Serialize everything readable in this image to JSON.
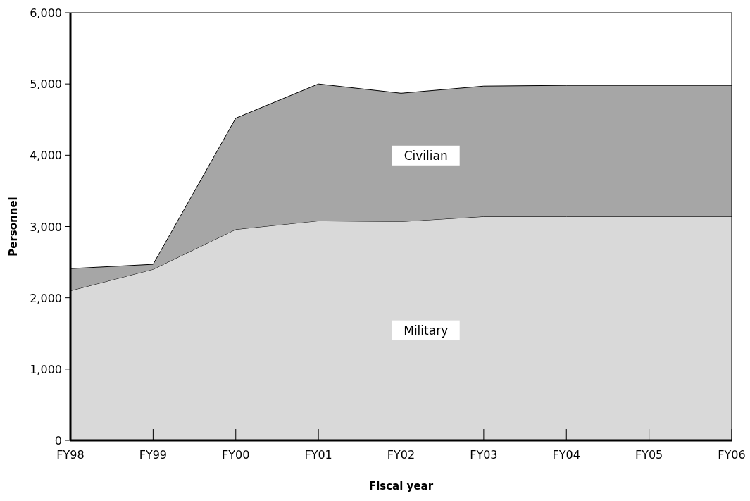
{
  "chart_data": {
    "type": "area",
    "stacked": true,
    "xlabel": "Fiscal year",
    "ylabel": "Personnel",
    "categories": [
      "FY98",
      "FY99",
      "FY00",
      "FY01",
      "FY02",
      "FY03",
      "FY04",
      "FY05",
      "FY06"
    ],
    "series": [
      {
        "name": "Military",
        "color": "#d9d9d9",
        "values": [
          2100,
          2400,
          2960,
          3080,
          3070,
          3140,
          3140,
          3140,
          3140
        ]
      },
      {
        "name": "Civilian",
        "color": "#a6a6a6",
        "values": [
          310,
          70,
          1560,
          1920,
          1800,
          1830,
          1840,
          1840,
          1840
        ]
      }
    ],
    "ylim": [
      0,
      6000
    ],
    "yticks": [
      {
        "value": 0,
        "label": "0"
      },
      {
        "value": 1000,
        "label": "1,000"
      },
      {
        "value": 2000,
        "label": "2,000"
      },
      {
        "value": 3000,
        "label": "3,000"
      },
      {
        "value": 4000,
        "label": "4,000"
      },
      {
        "value": 5000,
        "label": "5,000"
      },
      {
        "value": 6000,
        "label": "6,000"
      }
    ],
    "grid": false
  }
}
